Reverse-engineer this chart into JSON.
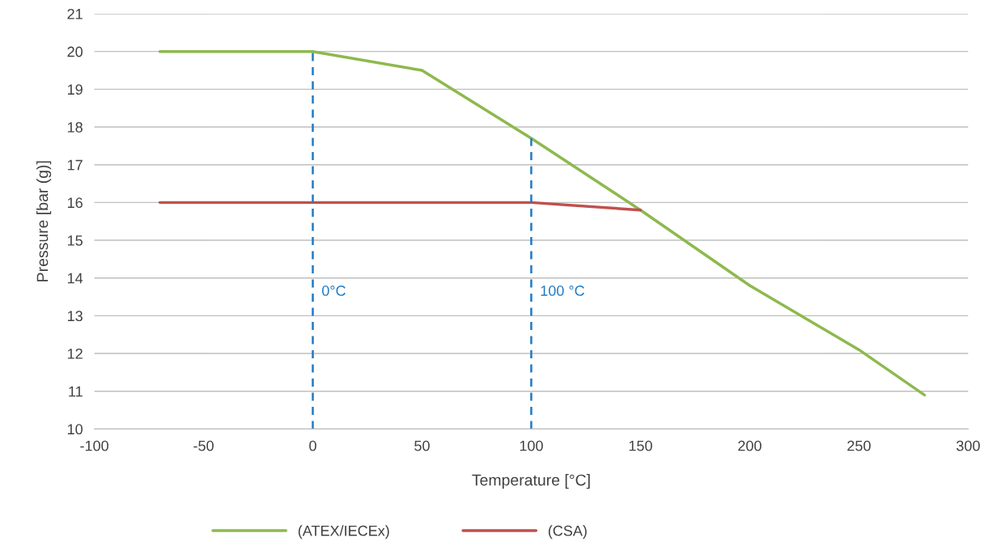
{
  "chart_data": {
    "type": "line",
    "xlabel": "Temperature [°C]",
    "ylabel": "Pressure [bar (g)]",
    "xlim": [
      -100,
      300
    ],
    "xticks": [
      -100,
      -50,
      0,
      50,
      100,
      150,
      200,
      250,
      300
    ],
    "ylim": [
      10,
      21
    ],
    "yticks": [
      10,
      11,
      12,
      13,
      14,
      15,
      16,
      17,
      18,
      19,
      20,
      21
    ],
    "grid": "y",
    "legend": "bottom",
    "marker": "none",
    "line_style": "solid",
    "series": [
      {
        "name": "(ATEX/IECEx)",
        "color": "#8db94e",
        "x": [
          -70,
          0,
          50,
          100,
          150,
          200,
          250,
          280
        ],
        "values": [
          20,
          20,
          19.5,
          17.7,
          15.8,
          13.8,
          12.1,
          10.9
        ]
      },
      {
        "name": "(CSA)",
        "color": "#c0504d",
        "x": [
          -70,
          0,
          100,
          150
        ],
        "values": [
          16,
          16,
          16,
          15.8
        ]
      }
    ],
    "ref_lines": [
      {
        "axis": "x",
        "value": 0,
        "label": "0°C",
        "color": "#1f7ac4",
        "line_style": "dashed"
      },
      {
        "axis": "x",
        "value": 100,
        "label": "100 °C",
        "color": "#1f7ac4",
        "line_style": "dashed"
      }
    ]
  }
}
